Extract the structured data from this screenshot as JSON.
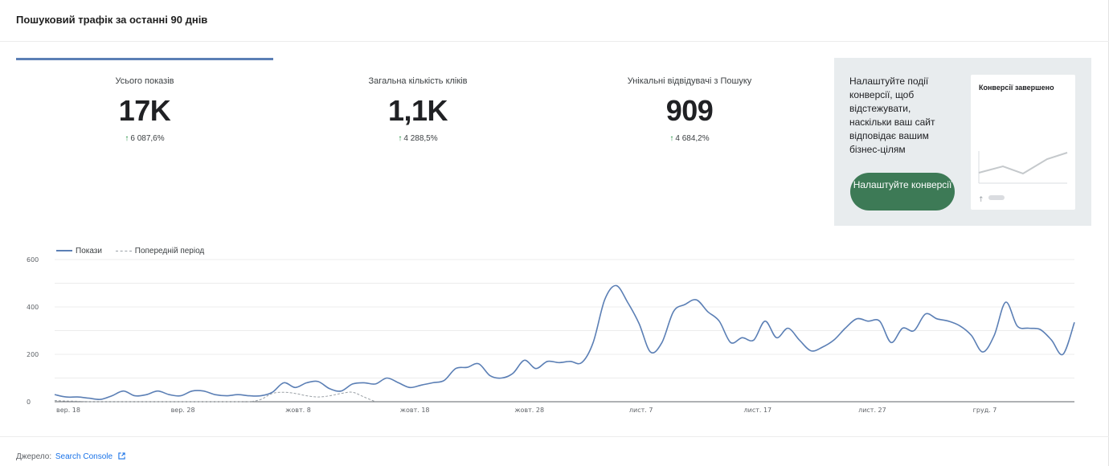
{
  "header": {
    "title": "Пошуковий трафік за останні 90 днів"
  },
  "metrics": [
    {
      "label": "Усього показів",
      "value": "17K",
      "change": "6 087,6%"
    },
    {
      "label": "Загальна кількість кліків",
      "value": "1,1K",
      "change": "4 288,5%"
    },
    {
      "label": "Унікальні відвідувачі з Пошуку",
      "value": "909",
      "change": "4 684,2%"
    }
  ],
  "promo": {
    "text": "Налаштуйте події конверсії, щоб відстежувати, наскільки ваш сайт відповідає вашим бізнес-цілям",
    "button_label": "Налаштуйте конверсії",
    "preview_title": "Конверсії завершено"
  },
  "legend": {
    "current": "Покази",
    "previous": "Попередній період"
  },
  "footer": {
    "source_label": "Джерело:",
    "source_link": "Search Console",
    "link_icon": "external-link-icon"
  },
  "colors": {
    "primary_line": "#5b7fb5",
    "previous_line": "#9aa0a6",
    "button": "#3d7a56",
    "positive": "#1e8e3e"
  },
  "chart_data": {
    "type": "line",
    "ylim": [
      0,
      600
    ],
    "yticks": [
      0,
      200,
      400,
      600
    ],
    "xtick_labels": [
      "вер. 18",
      "вер. 28",
      "жовт. 8",
      "жовт. 18",
      "жовт. 28",
      "лист. 7",
      "лист. 17",
      "лист. 27",
      "груд. 7"
    ],
    "series": [
      {
        "name": "Покази",
        "style": "solid",
        "values": [
          30,
          20,
          20,
          15,
          10,
          25,
          45,
          25,
          30,
          45,
          30,
          25,
          45,
          45,
          30,
          25,
          30,
          25,
          25,
          40,
          80,
          60,
          80,
          85,
          55,
          45,
          75,
          80,
          75,
          100,
          80,
          60,
          70,
          80,
          90,
          140,
          145,
          160,
          110,
          100,
          120,
          175,
          140,
          170,
          165,
          170,
          165,
          250,
          430,
          490,
          420,
          330,
          210,
          250,
          380,
          410,
          430,
          380,
          340,
          250,
          270,
          260,
          340,
          270,
          310,
          260,
          215,
          230,
          260,
          310,
          350,
          340,
          340,
          250,
          310,
          300,
          370,
          350,
          340,
          320,
          280,
          210,
          280,
          420,
          320,
          310,
          305,
          260,
          200,
          335
        ]
      },
      {
        "name": "Попередній період",
        "style": "dashed",
        "values": [
          5,
          3,
          2,
          0,
          0,
          0,
          0,
          0,
          0,
          0,
          0,
          0,
          0,
          0,
          0,
          0,
          0,
          0,
          10,
          35,
          40,
          35,
          25,
          20,
          25,
          35,
          40,
          20,
          0
        ]
      }
    ]
  }
}
